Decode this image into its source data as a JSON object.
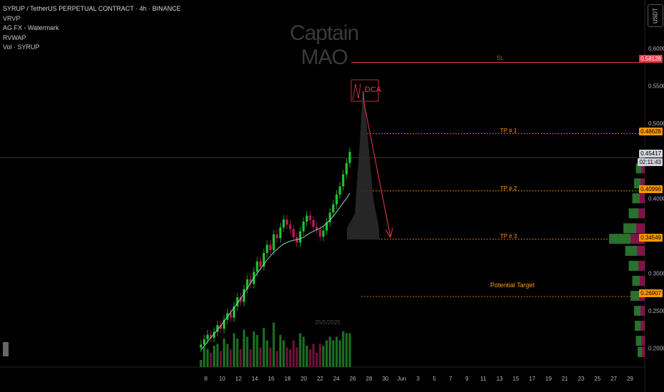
{
  "legend": {
    "symbol": "SYRUP / TetherUS PERPETUAL CONTRACT · 4h · BINANCE",
    "indicators": [
      "VRVP",
      "AG FX - Watermark",
      "RVWAP",
      "Vol · SYRUP"
    ]
  },
  "watermark": "Captain MAO",
  "currency_button": "USDT",
  "annotations": {
    "sl": "SL",
    "dca": "DCA",
    "tp1": "TP # 1",
    "tp2": "TP # 2",
    "tp3": "TP # 3",
    "potential_target": "Potential Target",
    "date_watermark": "25/5/2025"
  },
  "price_labels": {
    "sl": "0.58128",
    "tp1": "0.48628",
    "current": "0.45417",
    "countdown": "02:11:43",
    "tp2": "0.40996",
    "tp3": "0.34549",
    "target": "0.26907"
  },
  "colors": {
    "up": "#22c32e",
    "down": "#c2185b",
    "sl": "#f23645",
    "tp": "#ff9800",
    "vwap": "#7ed9c0",
    "background": "#000000"
  },
  "chart_data": {
    "type": "candlestick",
    "y_axis": {
      "ticks": [
        "0.60000",
        "0.55000",
        "0.50000",
        "0.40000",
        "0.30000",
        "0.25000",
        "0.20000"
      ],
      "range": [
        0.175,
        0.655
      ]
    },
    "x_axis": {
      "ticks": [
        "8",
        "10",
        "12",
        "14",
        "16",
        "18",
        "20",
        "22",
        "24",
        "26",
        "28",
        "30",
        "Jun",
        "3",
        "5",
        "7",
        "9",
        "11",
        "13",
        "15",
        "17",
        "19",
        "21",
        "23",
        "25",
        "27",
        "29"
      ]
    },
    "levels": [
      {
        "name": "SL",
        "value": 0.58128,
        "style": "solid",
        "color": "#f23645"
      },
      {
        "name": "TP # 1",
        "value": 0.48628,
        "style": "dotted",
        "color": "#ff9800"
      },
      {
        "name": "TP # 2",
        "value": 0.40996,
        "style": "dotted",
        "color": "#ff9800"
      },
      {
        "name": "TP # 3",
        "value": 0.34549,
        "style": "dotted",
        "color": "#ff9800"
      },
      {
        "name": "Potential Target",
        "value": 0.26907,
        "style": "dotted",
        "color": "#ff9800"
      }
    ],
    "current_price": 0.45417,
    "close_path": [
      0.205,
      0.212,
      0.218,
      0.214,
      0.222,
      0.231,
      0.226,
      0.238,
      0.247,
      0.241,
      0.256,
      0.268,
      0.262,
      0.279,
      0.292,
      0.286,
      0.302,
      0.316,
      0.309,
      0.327,
      0.338,
      0.331,
      0.352,
      0.347,
      0.361,
      0.372,
      0.365,
      0.359,
      0.348,
      0.341,
      0.356,
      0.369,
      0.377,
      0.371,
      0.362,
      0.358,
      0.349,
      0.357,
      0.368,
      0.381,
      0.392,
      0.405,
      0.416,
      0.432,
      0.447,
      0.462
    ],
    "vwap_path": [
      0.198,
      0.203,
      0.209,
      0.214,
      0.219,
      0.225,
      0.23,
      0.236,
      0.242,
      0.248,
      0.254,
      0.26,
      0.266,
      0.273,
      0.28,
      0.287,
      0.294,
      0.3,
      0.306,
      0.312,
      0.318,
      0.323,
      0.328,
      0.332,
      0.336,
      0.339,
      0.341,
      0.343,
      0.344,
      0.345,
      0.346,
      0.348,
      0.351,
      0.354,
      0.356,
      0.358,
      0.36,
      0.363,
      0.367,
      0.371,
      0.376,
      0.382,
      0.388,
      0.394,
      0.4,
      0.407
    ],
    "volume_profile": [
      {
        "price": 0.454,
        "volume": 0.15
      },
      {
        "price": 0.44,
        "volume": 0.25
      },
      {
        "price": 0.42,
        "volume": 0.3
      },
      {
        "price": 0.4,
        "volume": 0.35
      },
      {
        "price": 0.38,
        "volume": 0.45
      },
      {
        "price": 0.36,
        "volume": 0.6
      },
      {
        "price": 0.346,
        "volume": 1.0
      },
      {
        "price": 0.33,
        "volume": 0.55
      },
      {
        "price": 0.31,
        "volume": 0.45
      },
      {
        "price": 0.29,
        "volume": 0.35
      },
      {
        "price": 0.27,
        "volume": 0.4
      },
      {
        "price": 0.25,
        "volume": 0.3
      },
      {
        "price": 0.23,
        "volume": 0.28
      },
      {
        "price": 0.21,
        "volume": 0.25
      },
      {
        "price": 0.195,
        "volume": 0.2
      }
    ]
  }
}
